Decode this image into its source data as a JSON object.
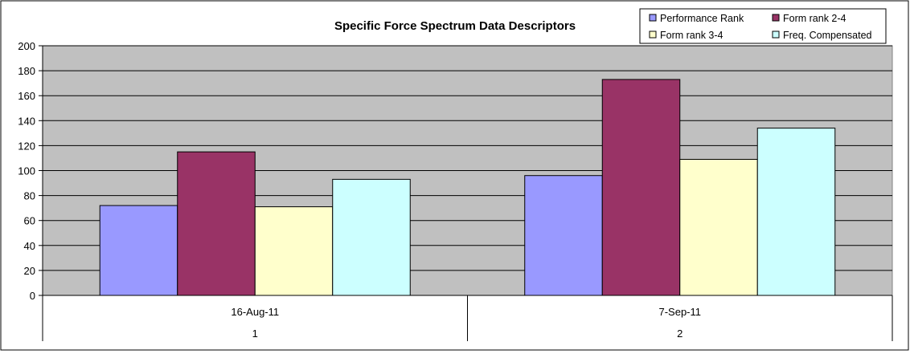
{
  "chart_data": {
    "type": "bar",
    "title": "Specific Force Spectrum Data Descriptors",
    "categories": [
      {
        "date": "16-Aug-11",
        "index": "1"
      },
      {
        "date": "7-Sep-11",
        "index": "2"
      }
    ],
    "series": [
      {
        "name": "Performance Rank",
        "color": "#9999ff",
        "values": [
          72,
          96
        ]
      },
      {
        "name": "Form rank 2-4",
        "color": "#993366",
        "values": [
          115,
          173
        ]
      },
      {
        "name": "Form rank 3-4",
        "color": "#ffffcc",
        "values": [
          71,
          109
        ]
      },
      {
        "name": "Freq. Compensated",
        "color": "#ccffff",
        "values": [
          93,
          134
        ]
      }
    ],
    "ylim": [
      0,
      200
    ],
    "yticks": [
      "0",
      "20",
      "40",
      "60",
      "80",
      "100",
      "120",
      "140",
      "160",
      "180",
      "200"
    ],
    "grid": true,
    "plot_background": "#c0c0c0",
    "legend_position": "top-right"
  }
}
